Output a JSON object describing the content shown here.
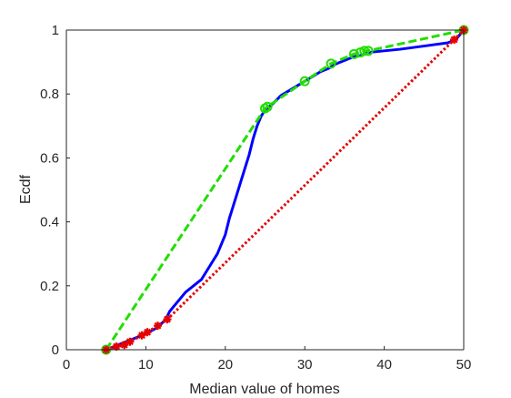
{
  "chart_data": {
    "type": "line",
    "xlabel": "Median value of homes",
    "ylabel": "Ecdf",
    "xlim": [
      0,
      50
    ],
    "ylim": [
      0,
      1
    ],
    "xticks": [
      0,
      10,
      20,
      30,
      40,
      50
    ],
    "yticks": [
      0,
      0.2,
      0.4,
      0.6,
      0.8,
      1
    ],
    "xtick_labels": [
      "0",
      "10",
      "20",
      "30",
      "40",
      "50"
    ],
    "ytick_labels": [
      "0",
      "0.2",
      "0.4",
      "0.6",
      "0.8",
      "1"
    ],
    "grid": false,
    "legend": "none",
    "series": [
      {
        "color": "#0000ff",
        "style": "solid",
        "marker": "none",
        "x": [
          5,
          7,
          8.5,
          10,
          11.5,
          12.5,
          13,
          14,
          15,
          16,
          17,
          18,
          19,
          20,
          20.5,
          21,
          21.5,
          22,
          22.5,
          23,
          23.5,
          24,
          24.5,
          25,
          26,
          27,
          28,
          29,
          30,
          31,
          32,
          33,
          34,
          35,
          36,
          37,
          38,
          40,
          42,
          45,
          48,
          49,
          50
        ],
        "y": [
          0.0,
          0.02,
          0.035,
          0.05,
          0.07,
          0.095,
          0.12,
          0.15,
          0.18,
          0.2,
          0.22,
          0.26,
          0.3,
          0.36,
          0.41,
          0.45,
          0.49,
          0.53,
          0.57,
          0.61,
          0.66,
          0.7,
          0.73,
          0.75,
          0.77,
          0.795,
          0.81,
          0.825,
          0.84,
          0.855,
          0.87,
          0.88,
          0.895,
          0.905,
          0.915,
          0.92,
          0.93,
          0.935,
          0.94,
          0.95,
          0.96,
          0.97,
          1.0
        ]
      },
      {
        "color": "#22dd00",
        "style": "dashed",
        "marker": "circle",
        "x": [
          5,
          25,
          25.3,
          30,
          33.3,
          36.2,
          37,
          37.5,
          38,
          50
        ],
        "y": [
          0.0,
          0.755,
          0.76,
          0.84,
          0.895,
          0.925,
          0.93,
          0.935,
          0.935,
          1.0
        ]
      },
      {
        "color": "#e60000",
        "style": "dotted",
        "marker": "asterisk",
        "x": [
          5,
          6.3,
          7.3,
          8,
          9.5,
          10.2,
          11.5,
          12.7,
          48.8,
          50
        ],
        "y": [
          0.0,
          0.01,
          0.015,
          0.025,
          0.045,
          0.055,
          0.075,
          0.095,
          0.97,
          1.0
        ]
      }
    ]
  }
}
